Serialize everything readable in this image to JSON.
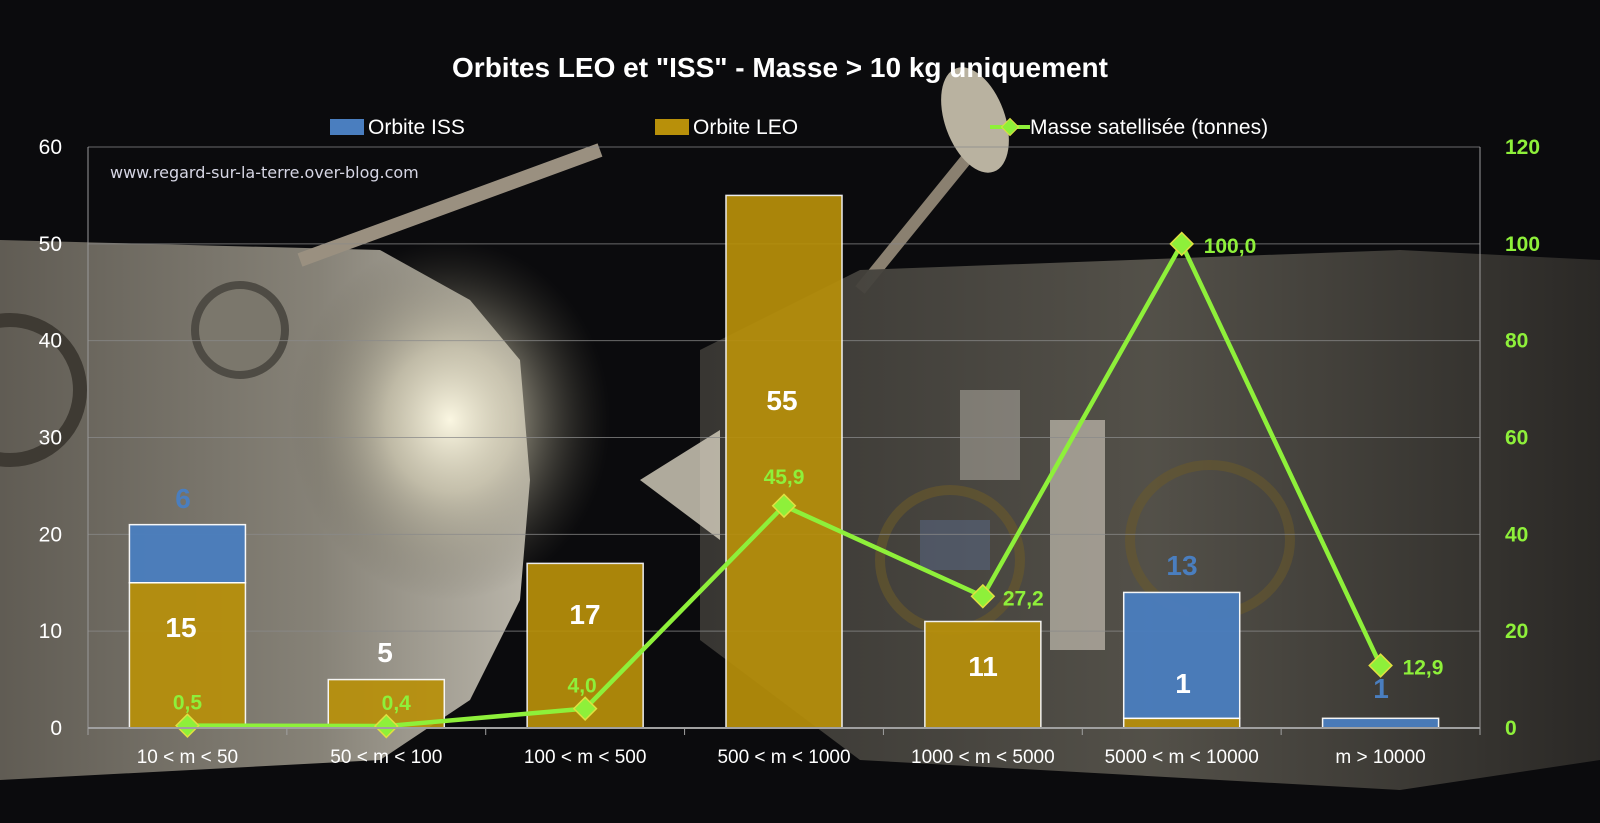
{
  "watermark": "www.regard-sur-la-terre.over-blog.com",
  "chart_data": {
    "type": "bar",
    "stacked": true,
    "title": "Orbites LEO et \"ISS\" - Masse > 10 kg uniquement",
    "categories": [
      "10 < m < 50",
      "50 < m < 100",
      "100 < m < 500",
      "500 < m < 1000",
      "1000 < m < 5000",
      "5000 < m < 10000",
      "m > 10000"
    ],
    "series": [
      {
        "name": "Orbite LEO",
        "type": "bar",
        "axis": "left",
        "color": "#b8900a",
        "values": [
          15,
          5,
          17,
          55,
          11,
          1,
          0
        ],
        "labels": [
          "15",
          "5",
          "17",
          "55",
          "11",
          "1",
          ""
        ],
        "label_color": "#ffffff"
      },
      {
        "name": "Orbite ISS",
        "type": "bar",
        "axis": "left",
        "color": "#4a7ebf",
        "values": [
          6,
          0,
          0,
          0,
          0,
          13,
          1
        ],
        "labels": [
          "6",
          "",
          "",
          "",
          "",
          "13",
          "1"
        ],
        "label_color": "#4a7ebf"
      },
      {
        "name": "Masse satellisée (tonnes)",
        "type": "line",
        "axis": "right",
        "color": "#8ef03a",
        "values": [
          0.5,
          0.4,
          4.0,
          45.9,
          27.2,
          100.0,
          12.9
        ],
        "labels": [
          "0,5",
          "0,4",
          "4,0",
          "45,9",
          "27,2",
          "100,0",
          "12,9"
        ]
      }
    ],
    "legend": {
      "placement": "top",
      "order": [
        "Orbite ISS",
        "Orbite LEO",
        "Masse satellisée (tonnes)"
      ]
    },
    "y_left": {
      "ylim": [
        0,
        60
      ],
      "ticks": [
        "0",
        "10",
        "20",
        "30",
        "40",
        "50",
        "60"
      ],
      "color": "#ffffff"
    },
    "y_right": {
      "ylim": [
        0,
        120
      ],
      "ticks": [
        "0",
        "20",
        "40",
        "60",
        "80",
        "100",
        "120"
      ],
      "color": "#8ef03a"
    },
    "grid": true,
    "xlabel": "",
    "ylabel": ""
  }
}
